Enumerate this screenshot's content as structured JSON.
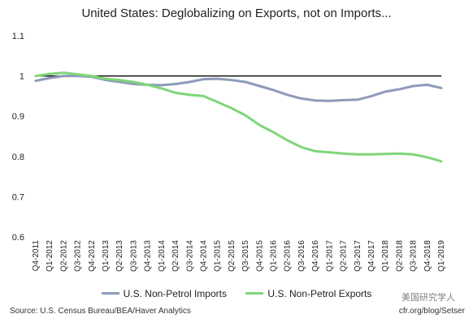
{
  "chart_data": {
    "type": "line",
    "title": "United States: Deglobalizing on Exports, not on Imports...",
    "xlabel": "",
    "ylabel": "",
    "ylim": [
      0.6,
      1.1
    ],
    "yticks": [
      "1.1",
      "1",
      "0.9",
      "0.8",
      "0.7",
      "0.6"
    ],
    "reference_line": 1,
    "grid": false,
    "legend_position": "bottom",
    "x": [
      "Q4-2011",
      "Q1-2012",
      "Q2-2012",
      "Q3-2012",
      "Q4-2012",
      "Q1-2013",
      "Q2-2013",
      "Q3-2013",
      "Q4-2013",
      "Q1-2014",
      "Q2-2014",
      "Q3-2014",
      "Q4-2014",
      "Q1-2015",
      "Q2-2015",
      "Q3-2015",
      "Q4-2015",
      "Q1-2016",
      "Q2-2016",
      "Q3-2016",
      "Q4-2016",
      "Q1-2017",
      "Q2-2017",
      "Q3-2017",
      "Q4-2017",
      "Q1-2018",
      "Q2-2018",
      "Q3-2018",
      "Q4-2018",
      "Q1-2019"
    ],
    "series": [
      {
        "name": "U.S. Non-Petrol Imports",
        "color": "#8e9bb8",
        "values": [
          0.988,
          0.995,
          1.0,
          1.0,
          0.998,
          0.99,
          0.985,
          0.98,
          0.978,
          0.977,
          0.98,
          0.985,
          0.992,
          0.993,
          0.99,
          0.985,
          0.975,
          0.965,
          0.953,
          0.944,
          0.939,
          0.938,
          0.94,
          0.941,
          0.95,
          0.961,
          0.967,
          0.975,
          0.978,
          0.97
        ]
      },
      {
        "name": "U.S. Non-Petrol Exports",
        "color": "#7fd67a",
        "values": [
          1.0,
          1.005,
          1.008,
          1.004,
          1.0,
          0.993,
          0.99,
          0.985,
          0.978,
          0.969,
          0.958,
          0.953,
          0.95,
          0.935,
          0.92,
          0.902,
          0.878,
          0.86,
          0.84,
          0.823,
          0.813,
          0.81,
          0.807,
          0.805,
          0.805,
          0.806,
          0.807,
          0.805,
          0.798,
          0.788
        ]
      }
    ]
  },
  "source_note": "Source: U.S. Census Bureau/BEA/Haver Analytics",
  "credit_note": "cfr.org/blog/Setser",
  "watermark": "美国研究学人"
}
